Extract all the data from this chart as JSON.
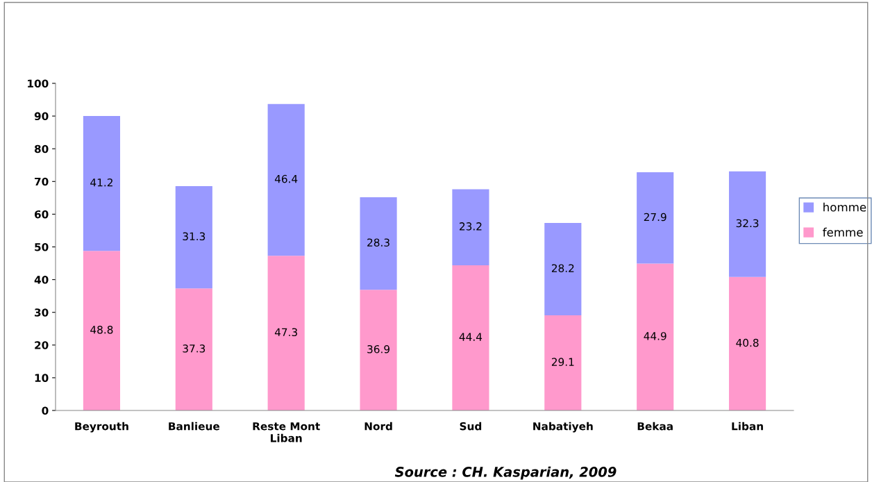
{
  "chart_data": {
    "type": "bar",
    "stacked": true,
    "categories": [
      "Beyrouth",
      "Banlieue",
      "Reste Mont\nLiban",
      "Nord",
      "Sud",
      "Nabatiyeh",
      "Bekaa",
      "Liban"
    ],
    "series": [
      {
        "name": "femme",
        "color": "#ff99cc",
        "values": [
          48.8,
          37.3,
          47.3,
          36.9,
          44.4,
          29.1,
          44.9,
          40.8
        ]
      },
      {
        "name": "homme",
        "color": "#9999ff",
        "values": [
          41.2,
          31.3,
          46.4,
          28.3,
          23.2,
          28.2,
          27.9,
          32.3
        ]
      }
    ],
    "ylim": [
      0,
      100
    ],
    "yticks": [
      0,
      10,
      20,
      30,
      40,
      50,
      60,
      70,
      80,
      90,
      100
    ],
    "grid": false,
    "legend": "right",
    "data_labels": true,
    "annotations": [
      "Source : CH. Kasparian, 2009"
    ]
  }
}
